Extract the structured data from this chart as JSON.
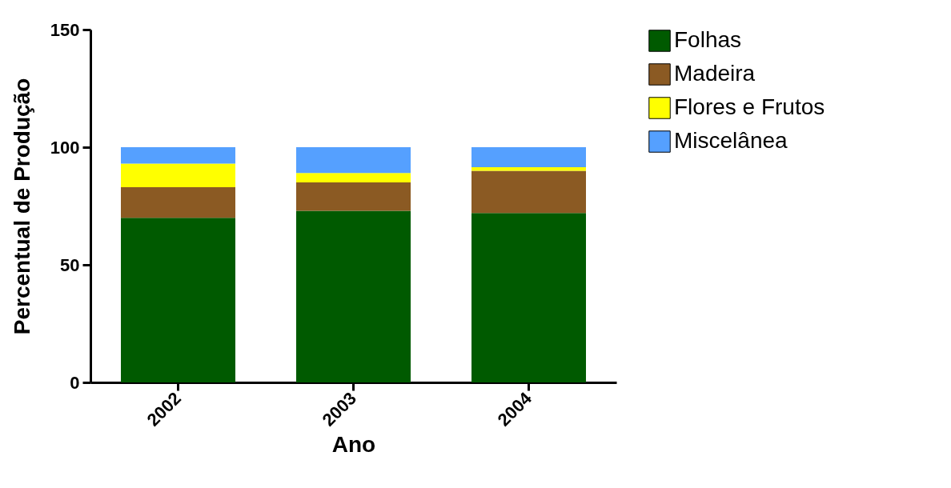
{
  "chart_data": {
    "type": "bar",
    "xlabel": "Ano",
    "ylabel": "Percentual de Produção",
    "categories": [
      "2002",
      "2003",
      "2004"
    ],
    "stacked": true,
    "ylim": [
      0,
      150
    ],
    "yticks": [
      0,
      50,
      100,
      150
    ],
    "grid": false,
    "legend": "top right",
    "series": [
      {
        "name": "Folhas",
        "color": "#005a00",
        "values": [
          70,
          73,
          72
        ]
      },
      {
        "name": "Madeira",
        "color": "#8b5a23",
        "values": [
          13,
          12,
          18
        ]
      },
      {
        "name": "Flores e Frutos",
        "color": "#ffff00",
        "values": [
          10,
          4,
          1.5
        ]
      },
      {
        "name": "Miscelânea",
        "color": "#55a0ff",
        "values": [
          7,
          11,
          8.5
        ]
      }
    ]
  }
}
